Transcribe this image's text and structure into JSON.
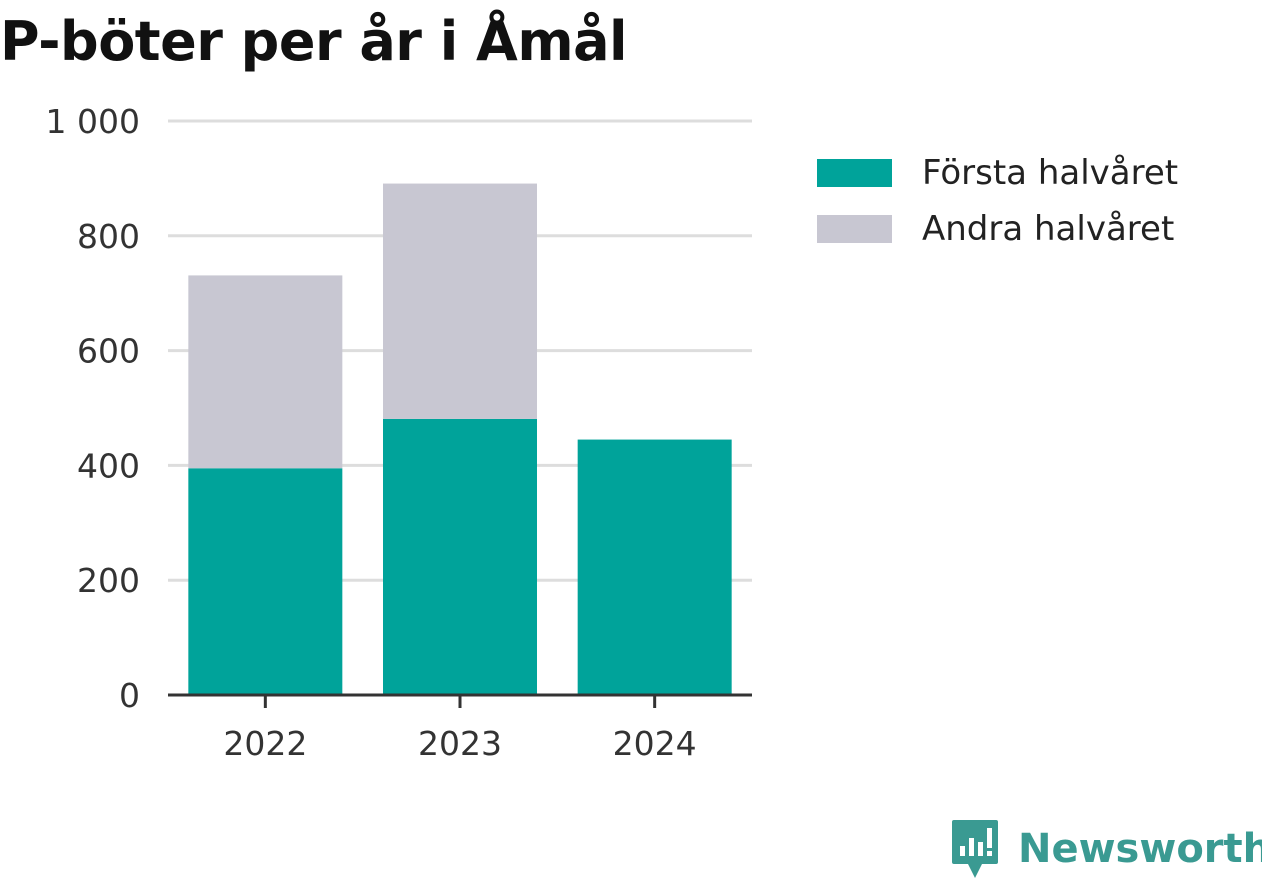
{
  "title": "P-böter per år i Åmål",
  "chart_data": {
    "type": "bar",
    "stacked": true,
    "categories": [
      "2022",
      "2023",
      "2024"
    ],
    "series": [
      {
        "name": "Första halvåret",
        "color": "#00a39a",
        "values": [
          395,
          481,
          445
        ]
      },
      {
        "name": "Andra halvåret",
        "color": "#c8c7d2",
        "values": [
          336,
          410,
          0
        ]
      }
    ],
    "y_ticks": [
      0,
      200,
      400,
      600,
      800,
      1000
    ],
    "y_tick_labels": [
      "0",
      "200",
      "400",
      "600",
      "800",
      "1 000"
    ],
    "ylim": [
      0,
      1000
    ],
    "grid": true,
    "legend_position": "right"
  },
  "brand": {
    "name": "Newsworthy",
    "icon": "newsworthy-logo-icon",
    "color": "#3a9a92"
  }
}
